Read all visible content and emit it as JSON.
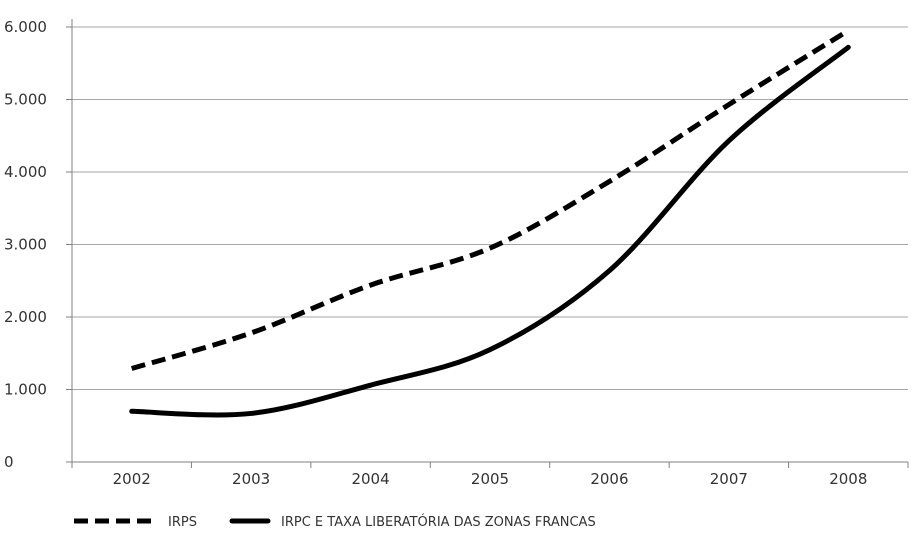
{
  "chart_data": {
    "type": "line",
    "title": "",
    "xlabel": "",
    "ylabel": "",
    "categories": [
      "2002",
      "2003",
      "2004",
      "2005",
      "2006",
      "2007",
      "2008"
    ],
    "y_ticks": [
      "0",
      "1.000",
      "2.000",
      "3.000",
      "4.000",
      "5.000",
      "6.000"
    ],
    "ylim": [
      0,
      6000
    ],
    "grid": "horizontal",
    "legend_position": "bottom-left",
    "series": [
      {
        "name": "IRPS",
        "style": "dashed",
        "color": "#000000",
        "values": [
          1290,
          1780,
          2440,
          2950,
          3870,
          4930,
          5950
        ]
      },
      {
        "name": "IRPC E TAXA LIBERATÓRIA DAS ZONAS FRANCAS",
        "style": "solid",
        "color": "#000000",
        "values": [
          700,
          670,
          1060,
          1550,
          2640,
          4430,
          5720
        ]
      }
    ]
  }
}
